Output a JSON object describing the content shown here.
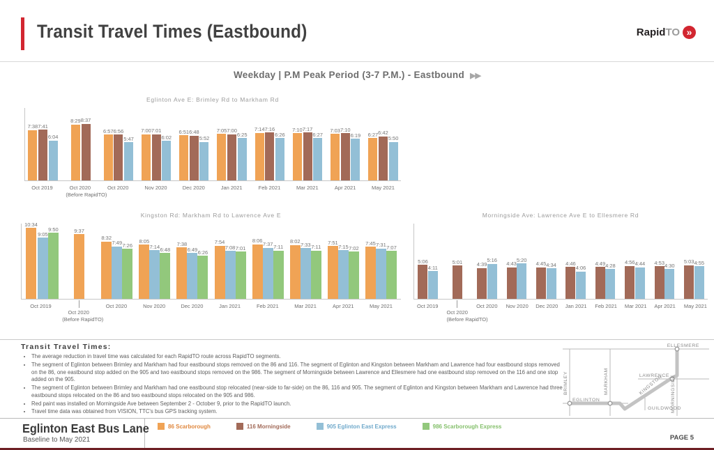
{
  "header": {
    "title": "Transit Travel Times (Eastbound)",
    "logo_bold": "Rapid",
    "logo_light": "TO",
    "logo_arrow": "»"
  },
  "subtitle": {
    "text": "Weekday | P.M Peak Period (3-7 P.M.)  - Eastbound",
    "arrows": "▶▶"
  },
  "colors": {
    "route_86_orange": "#f0a355",
    "route_116_brown": "#a26a58",
    "route_905_blue": "#93bfd6",
    "route_986_green": "#92c87c",
    "accent_red": "#d22630"
  },
  "chart_data": [
    {
      "type": "bar",
      "title": "Eglinton Ave E: Brimley Rd to Markham Rd",
      "unit": "travel time (m:ss)",
      "ylim_minutes": [
        0,
        11
      ],
      "categories": [
        {
          "label": "Oct 2019",
          "sub": ""
        },
        {
          "label": "Oct 2020",
          "sub": "(Before RapidTO)"
        },
        {
          "label": "Oct 2020",
          "sub": ""
        },
        {
          "label": "Nov 2020",
          "sub": ""
        },
        {
          "label": "Dec 2020",
          "sub": ""
        },
        {
          "label": "Jan 2021",
          "sub": ""
        },
        {
          "label": "Feb 2021",
          "sub": ""
        },
        {
          "label": "Mar 2021",
          "sub": ""
        },
        {
          "label": "Apr 2021",
          "sub": ""
        },
        {
          "label": "May 2021",
          "sub": ""
        }
      ],
      "series": [
        {
          "name": "86 Scarborough",
          "color": "#f0a355",
          "values": [
            "7:38",
            "8:29",
            "6:57",
            "7:00",
            "6:51",
            "7:05",
            "7:14",
            "7:10",
            "7:03",
            "6:27"
          ]
        },
        {
          "name": "116 Morningside",
          "color": "#a26a58",
          "values": [
            "7:41",
            "8:37",
            "6:56",
            "7:01",
            "6:48",
            "7:00",
            "7:16",
            "7:17",
            "7:10",
            "6:42"
          ]
        },
        {
          "name": "905 Eglinton East Express",
          "color": "#93bfd6",
          "values": [
            "6:04",
            null,
            "5:47",
            "6:02",
            "5:52",
            "6:25",
            "6:26",
            "6:27",
            "6:19",
            "5:50"
          ]
        }
      ]
    },
    {
      "type": "bar",
      "title": "Kingston Rd: Markham Rd to Lawrence Ave E",
      "unit": "travel time (m:ss)",
      "ylim_minutes": [
        0,
        11.2
      ],
      "categories": [
        {
          "label": "Oct 2019",
          "sub": ""
        },
        {
          "label": "Oct 2020",
          "sub": "(Before RapidTO)"
        },
        {
          "label": "Oct 2020",
          "sub": ""
        },
        {
          "label": "Nov 2020",
          "sub": ""
        },
        {
          "label": "Dec 2020",
          "sub": ""
        },
        {
          "label": "Jan 2021",
          "sub": ""
        },
        {
          "label": "Feb 2021",
          "sub": ""
        },
        {
          "label": "Mar 2021",
          "sub": ""
        },
        {
          "label": "Apr 2021",
          "sub": ""
        },
        {
          "label": "May 2021",
          "sub": ""
        }
      ],
      "series": [
        {
          "name": "86 Scarborough",
          "color": "#f0a355",
          "values": [
            "10:34",
            "9:37",
            "8:32",
            "8:05",
            "7:38",
            "7:54",
            "8:06",
            "8:02",
            "7:51",
            "7:45"
          ]
        },
        {
          "name": "905 Eglinton East Express",
          "color": "#93bfd6",
          "values": [
            "9:05",
            null,
            "7:49",
            "7:14",
            "6:49",
            "7:08",
            "7:37",
            "7:33",
            "7:15",
            "7:31"
          ]
        },
        {
          "name": "986 Scarborough Express",
          "color": "#92c87c",
          "values": [
            "9:50",
            null,
            "7:26",
            "6:48",
            "6:26",
            "7:01",
            "7:11",
            "7:11",
            "7:02",
            "7:07"
          ]
        }
      ]
    },
    {
      "type": "bar",
      "title": "Morningside Ave: Lawrence Ave E to Ellesmere Rd",
      "unit": "travel time (m:ss)",
      "ylim_minutes": [
        0,
        11.3
      ],
      "categories": [
        {
          "label": "Oct 2019",
          "sub": ""
        },
        {
          "label": "Oct 2020",
          "sub": "(Before RapidTO)"
        },
        {
          "label": "Oct 2020",
          "sub": ""
        },
        {
          "label": "Nov 2020",
          "sub": ""
        },
        {
          "label": "Dec 2020",
          "sub": ""
        },
        {
          "label": "Jan 2021",
          "sub": ""
        },
        {
          "label": "Feb 2021",
          "sub": ""
        },
        {
          "label": "Mar 2021",
          "sub": ""
        },
        {
          "label": "Apr 2021",
          "sub": ""
        },
        {
          "label": "May 2021",
          "sub": ""
        }
      ],
      "series": [
        {
          "name": "116 Morningside",
          "color": "#a26a58",
          "values": [
            "5:06",
            "5:01",
            "4:39",
            "4:43",
            "4:45",
            "4:46",
            "4:49",
            "4:56",
            "4:53",
            "5:03"
          ]
        },
        {
          "name": "905 Eglinton East Express",
          "color": "#93bfd6",
          "values": [
            "4:11",
            null,
            "5:16",
            "5:20",
            "4:34",
            "4:06",
            "4:28",
            "4:44",
            "4:30",
            "4:55"
          ]
        }
      ]
    }
  ],
  "notes": {
    "heading": "Transit Travel Times:",
    "bullets": [
      "The average reduction in travel time was calculated for each RapidTO route across RapidTO segments.",
      "The segment of Eglinton between Brimley and Markham had four eastbound stops removed on the 86 and 116. The segment of Eglinton and Kingston between Markham and Lawrence had four eastbound stops removed on the 86, one eastbound stop added on the 905 and two eastbound stops removed on the 986. The segment of Morningside between Lawrence and Ellesmere had one eastbound stop removed on the 116 and one stop added on the 905.",
      "The segment of Eglinton between Brimley and Markham had one eastbound stop relocated (near-side to far-side) on the 86, 116 and 905. The segment of Eglinton and Kingston between Markham and Lawrence had three eastbound stops relocated on the 86 and two eastbound stops relocated on the 905 and 986.",
      "Red paint was installed on Morningside Ave between September 2 - October 9, prior to the RapidTO launch.",
      "Travel time data was obtained from VISION, TTC's bus GPS tracking system."
    ]
  },
  "map": {
    "streets": [
      "ELLESMERE",
      "LAWRENCE",
      "EGLINTON",
      "BRIMLEY",
      "MARKHAM",
      "MORNINGSIDE",
      "KINGSTON",
      "GUILDWOOD"
    ]
  },
  "footer": {
    "title": "Eglinton East Bus Lane",
    "subtitle": "Baseline to May 2021",
    "page": "PAGE 5",
    "legend": [
      {
        "label": "86 Scarborough",
        "color": "#f0a355",
        "text_color": "#e0883f"
      },
      {
        "label": "116 Morningside",
        "color": "#a26a58",
        "text_color": "#a26a58"
      },
      {
        "label": "905 Eglinton East Express",
        "color": "#93bfd6",
        "text_color": "#6fa9cb"
      },
      {
        "label": "986 Scarborough Express",
        "color": "#92c87c",
        "text_color": "#85c06c"
      }
    ]
  }
}
